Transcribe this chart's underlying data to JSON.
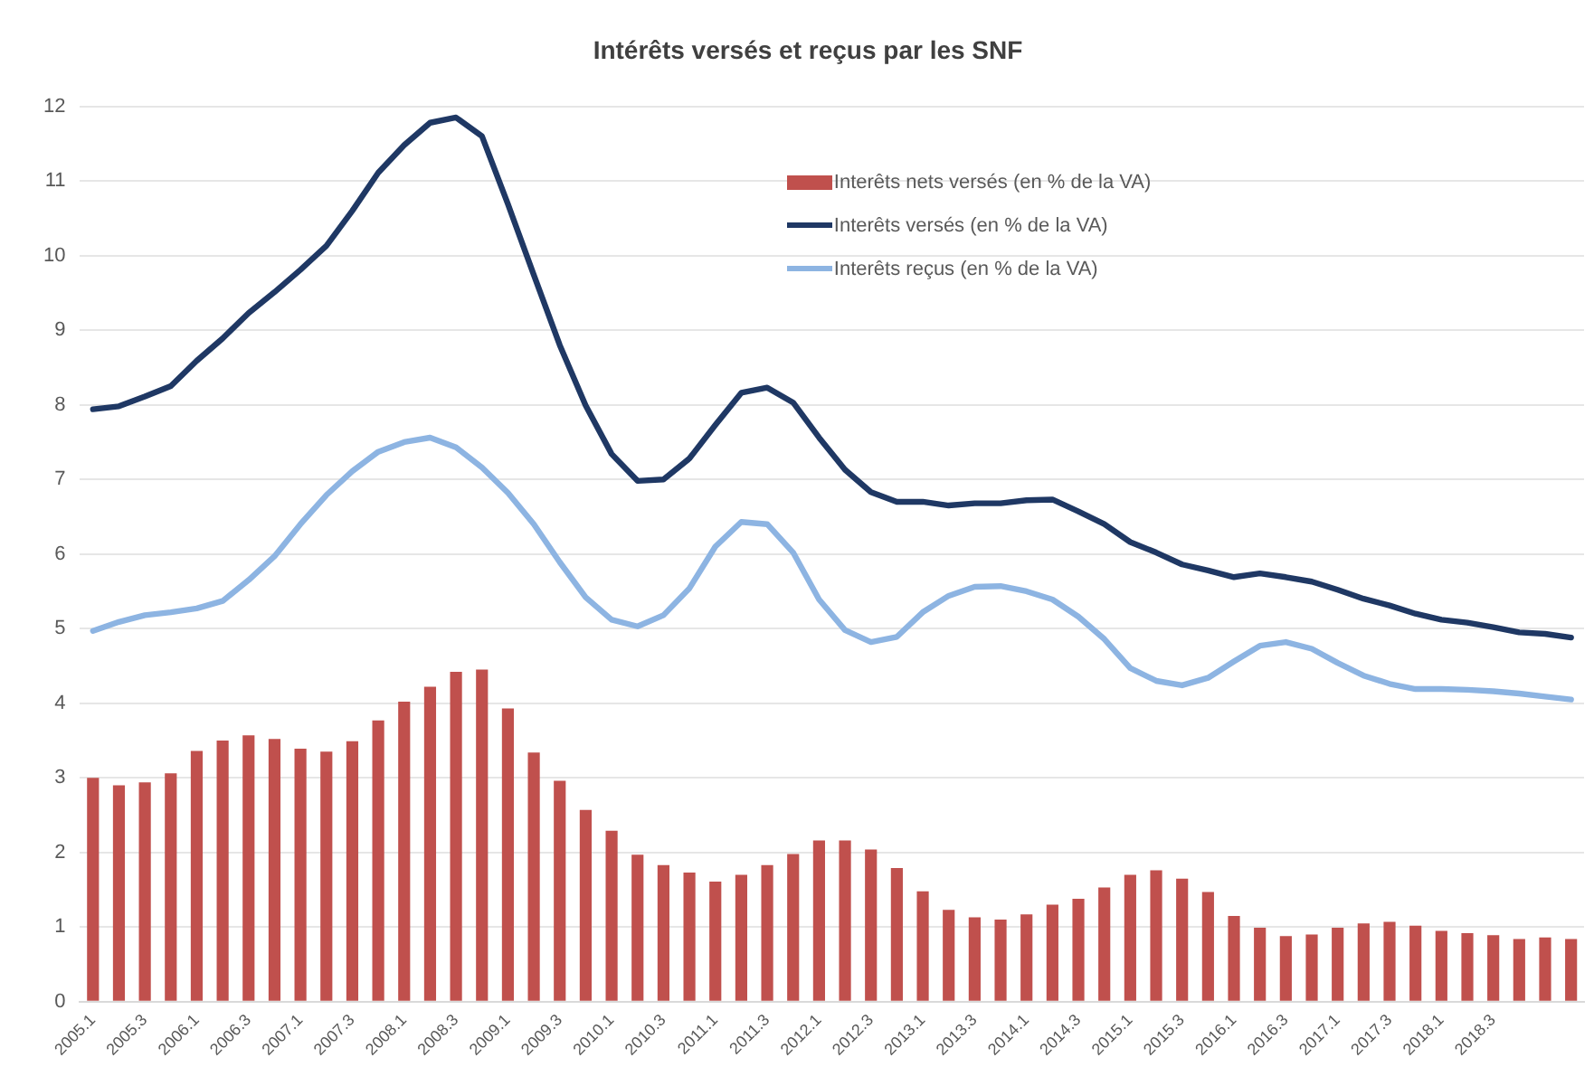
{
  "chart_data": {
    "type": "bar",
    "title": "Intérêts versés et reçus par les SNF",
    "categories": [
      "2005.1",
      null,
      "2005.3",
      null,
      "2006.1",
      null,
      "2006.3",
      null,
      "2007.1",
      null,
      "2007.3",
      null,
      "2008.1",
      null,
      "2008.3",
      null,
      "2009.1",
      null,
      "2009.3",
      null,
      "2010.1",
      null,
      "2010.3",
      null,
      "2011.1",
      null,
      "2011.3",
      null,
      "2012.1",
      null,
      "2012.3",
      null,
      "2013.1",
      null,
      "2013.3",
      null,
      "2014.1",
      null,
      "2014.3",
      null,
      "2015.1",
      null,
      "2015.3",
      null,
      "2016.1",
      null,
      "2016.3",
      null,
      "2017.1",
      null,
      "2017.3",
      null,
      "2018.1",
      null,
      "2018.3",
      null,
      null,
      null
    ],
    "series": [
      {
        "name": "Interêts nets versés (en % de la VA)",
        "color": "#c0504d",
        "values": [
          3.0,
          2.9,
          2.94,
          3.06,
          3.36,
          3.5,
          3.57,
          3.52,
          3.39,
          3.35,
          3.49,
          3.77,
          4.02,
          4.22,
          4.42,
          4.45,
          3.93,
          3.34,
          2.96,
          2.57,
          2.29,
          1.97,
          1.83,
          1.73,
          1.61,
          1.7,
          1.83,
          1.98,
          2.16,
          2.16,
          2.04,
          1.79,
          1.48,
          1.23,
          1.13,
          1.1,
          1.17,
          1.3,
          1.38,
          1.53,
          1.7,
          1.76,
          1.65,
          1.47,
          1.15,
          0.99,
          0.88,
          0.9,
          0.99,
          1.05,
          1.07,
          1.02,
          0.95,
          0.92,
          0.89,
          0.84,
          0.86,
          0.84
        ]
      },
      {
        "name": "Interêts versés (en % de la VA)",
        "type": "line",
        "color": "#1f3864",
        "values": [
          7.94,
          7.98,
          8.11,
          8.25,
          8.59,
          8.89,
          9.23,
          9.51,
          9.81,
          10.13,
          10.6,
          11.11,
          11.48,
          11.78,
          11.85,
          11.6,
          10.69,
          9.74,
          8.8,
          7.99,
          7.34,
          6.98,
          7.0,
          7.28,
          7.73,
          8.16,
          8.23,
          8.03,
          7.56,
          7.13,
          6.83,
          6.7,
          6.7,
          6.65,
          6.68,
          6.68,
          6.72,
          6.73,
          6.57,
          6.4,
          6.16,
          6.02,
          5.86,
          5.78,
          5.69,
          5.74,
          5.69,
          5.63,
          5.52,
          5.4,
          5.31,
          5.2,
          5.12,
          5.08,
          5.02,
          4.95,
          4.93,
          4.88
        ]
      },
      {
        "name": "Interêts reçus (en % de la VA)",
        "type": "line",
        "color": "#8db4e2",
        "values": [
          4.97,
          5.09,
          5.18,
          5.22,
          5.27,
          5.37,
          5.65,
          5.97,
          6.4,
          6.79,
          7.11,
          7.37,
          7.5,
          7.56,
          7.43,
          7.16,
          6.82,
          6.4,
          5.89,
          5.42,
          5.12,
          5.03,
          5.18,
          5.54,
          6.1,
          6.43,
          6.4,
          6.02,
          5.39,
          4.98,
          4.82,
          4.89,
          5.22,
          5.44,
          5.56,
          5.57,
          5.5,
          5.39,
          5.16,
          4.86,
          4.47,
          4.3,
          4.24,
          4.34,
          4.56,
          4.77,
          4.82,
          4.73,
          4.54,
          4.37,
          4.26,
          4.19,
          4.19,
          4.18,
          4.16,
          4.13,
          4.09,
          4.05
        ]
      }
    ],
    "ylim": [
      0,
      12
    ],
    "yticks": [
      0,
      1,
      2,
      3,
      4,
      5,
      6,
      7,
      8,
      9,
      10,
      11,
      12
    ],
    "grid": "y",
    "legend": "top right",
    "marker": "none"
  }
}
